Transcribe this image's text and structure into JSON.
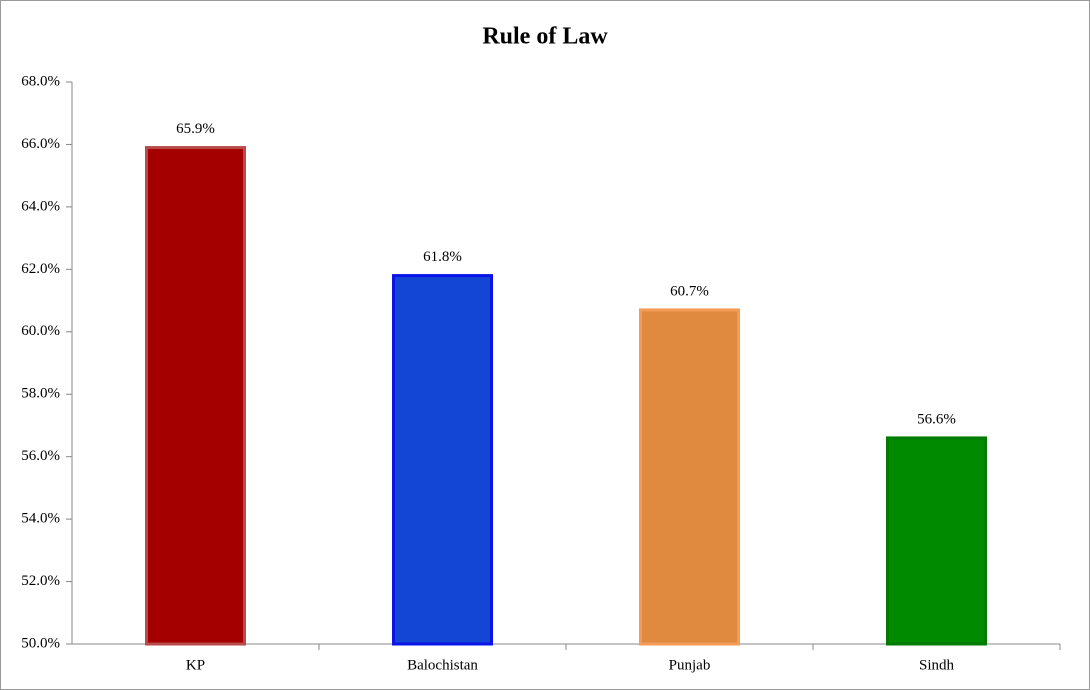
{
  "chart_data": {
    "type": "bar",
    "title": "Rule of Law",
    "categories": [
      "KP",
      "Balochistan",
      "Punjab",
      "Sindh"
    ],
    "values": [
      65.9,
      61.8,
      60.7,
      56.6
    ],
    "value_labels": [
      "65.9%",
      "61.8%",
      "60.7%",
      "56.6%"
    ],
    "colors": [
      "#a50000",
      "#1446d6",
      "#e08a40",
      "#008a00"
    ],
    "edge_colors": [
      "#b84a4a",
      "#0a14e8",
      "#f29c58",
      "#007a00"
    ],
    "ylim": [
      50,
      68
    ],
    "yticks": [
      {
        "value": 50,
        "label": "50.0%"
      },
      {
        "value": 52,
        "label": "52.0%"
      },
      {
        "value": 54,
        "label": "54.0%"
      },
      {
        "value": 56,
        "label": "56.0%"
      },
      {
        "value": 58,
        "label": "58.0%"
      },
      {
        "value": 60,
        "label": "60.0%"
      },
      {
        "value": 62,
        "label": "62.0%"
      },
      {
        "value": 64,
        "label": "64.0%"
      },
      {
        "value": 66,
        "label": "66.0%"
      },
      {
        "value": 68,
        "label": "68.0%"
      }
    ],
    "grid": false
  }
}
